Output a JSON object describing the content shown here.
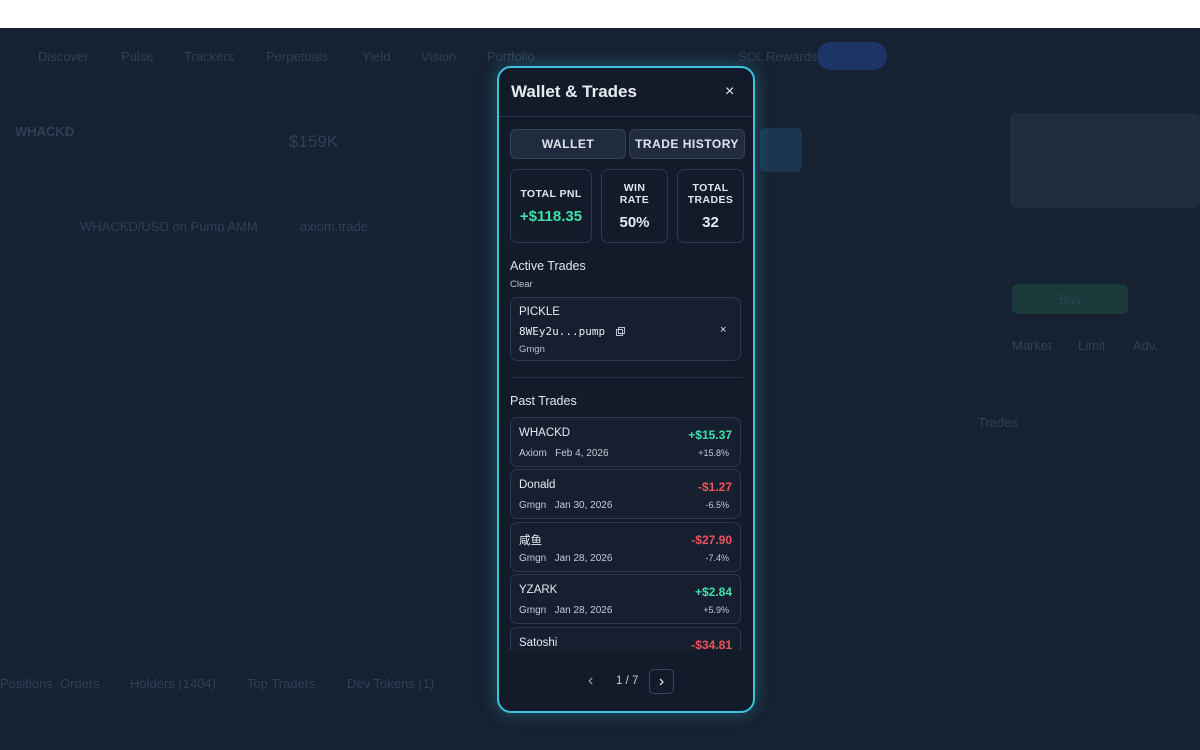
{
  "background": {
    "nav": [
      "Discover",
      "Pulse",
      "Trackers",
      "Perpetuals",
      "Yield",
      "Vision",
      "Portfolio",
      "Rewards"
    ],
    "network": "SOL",
    "token": "WHACKD",
    "market_cap": "$159K",
    "chart_title": "WHACKD/USD on Pump AMM",
    "source": "axiom.trade",
    "tabs": [
      "Positions",
      "Orders",
      "Holders (1404)",
      "Top Traders",
      "Dev Tokens (1)"
    ],
    "buy": "Buy",
    "order_tabs": [
      "Market",
      "Limit",
      "Adv."
    ],
    "trades_tab": "Trades"
  },
  "modal": {
    "title": "Wallet & Trades",
    "close": "×",
    "tabs": [
      "WALLET",
      "TRADE HISTORY"
    ],
    "stats": [
      {
        "label": "TOTAL PNL",
        "value": "+$118.35"
      },
      {
        "label": "WIN RATE",
        "value": "50%"
      },
      {
        "label": "TOTAL TRADES",
        "value": "32"
      }
    ],
    "active": {
      "heading": "Active Trades",
      "clear": "Clear",
      "trades": [
        {
          "name": "PICKLE",
          "address": "8WEy2u...pump",
          "source": "Gmgn",
          "remove": "×"
        }
      ]
    },
    "past": {
      "heading": "Past Trades",
      "trades": [
        {
          "name": "WHACKD",
          "source": "Axiom",
          "date": "Feb 4, 2026",
          "pnl": "+$15.37",
          "pct": "+15.8%"
        },
        {
          "name": "Donald",
          "source": "Gmgn",
          "date": "Jan 30, 2026",
          "pnl": "-$1.27",
          "pct": "-6.5%"
        },
        {
          "name": "咸鱼",
          "source": "Gmgn",
          "date": "Jan 28, 2026",
          "pnl": "-$27.90",
          "pct": "-7.4%"
        },
        {
          "name": "YZARK",
          "source": "Gmgn",
          "date": "Jan 28, 2026",
          "pnl": "+$2.84",
          "pct": "+5.9%"
        },
        {
          "name": "Satoshi",
          "pnl": "-$34.81"
        }
      ]
    },
    "pagination": {
      "prev": "‹",
      "page": "1 / 7",
      "next": "›"
    }
  }
}
